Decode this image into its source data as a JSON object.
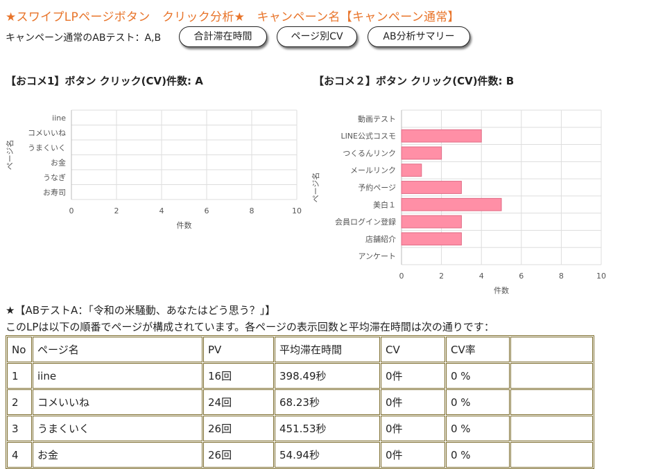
{
  "header": {
    "title": "★スワイプLPページボタン　クリック分析★　キャンペーン名【キャンペーン通常】",
    "subline": "キャンペーン通常のABテスト：A,B",
    "buttons": [
      "合計滞在時間",
      "ページ別CV",
      "AB分析サマリー"
    ]
  },
  "colors": {
    "accent": "#e8742a",
    "bar": "#ff8fa6",
    "bar_border": "#e06a84",
    "grid": "#dddddd"
  },
  "chart_data": [
    {
      "type": "bar",
      "orientation": "horizontal",
      "title": "【おコメ1】ボタン クリック(CV)件数: A",
      "categories": [
        "iine",
        "コメいいね",
        "うまくいく",
        "お金",
        "うなぎ",
        "お寿司"
      ],
      "values": [
        0,
        0,
        0,
        0,
        0,
        0
      ],
      "xlabel": "件数",
      "ylabel": "ページ名",
      "xlim": [
        0,
        10
      ],
      "xticks": [
        "0",
        "2",
        "4",
        "6",
        "8",
        "10"
      ],
      "grid": true
    },
    {
      "type": "bar",
      "orientation": "horizontal",
      "title": "【おコメ２】ボタン クリック(CV)件数: B",
      "categories": [
        "動画テスト",
        "LINE公式コスモ",
        "つくるんリンク",
        "メールリンク",
        "予約ページ",
        "美白１",
        "会員ログイン登録",
        "店舗紹介",
        "アンケート"
      ],
      "values": [
        0,
        4,
        2,
        1,
        3,
        5,
        3,
        3,
        0
      ],
      "xlabel": "件数",
      "ylabel": "ページ名",
      "xlim": [
        0,
        10
      ],
      "xticks": [
        "0",
        "2",
        "4",
        "6",
        "8",
        "10"
      ],
      "grid": true
    }
  ],
  "section": {
    "heading": "★【ABテストA：｢令和の米騒動、あなたはどう思う？｣】",
    "description": "このLPは以下の順番でページが構成されています。各ページの表示回数と平均滞在時間は次の通りです：",
    "table": {
      "headers": [
        "No",
        "ページ名",
        "PV",
        "平均滞在時間",
        "CV",
        "CV率",
        ""
      ],
      "rows": [
        [
          "1",
          "iine",
          "16回",
          "398.49秒",
          "0件",
          "0 %",
          ""
        ],
        [
          "2",
          "コメいいね",
          "24回",
          "68.23秒",
          "0件",
          "0 %",
          ""
        ],
        [
          "3",
          "うまくいく",
          "26回",
          "451.53秒",
          "0件",
          "0 %",
          ""
        ],
        [
          "4",
          "お金",
          "26回",
          "54.94秒",
          "0件",
          "0 %",
          ""
        ]
      ]
    }
  }
}
